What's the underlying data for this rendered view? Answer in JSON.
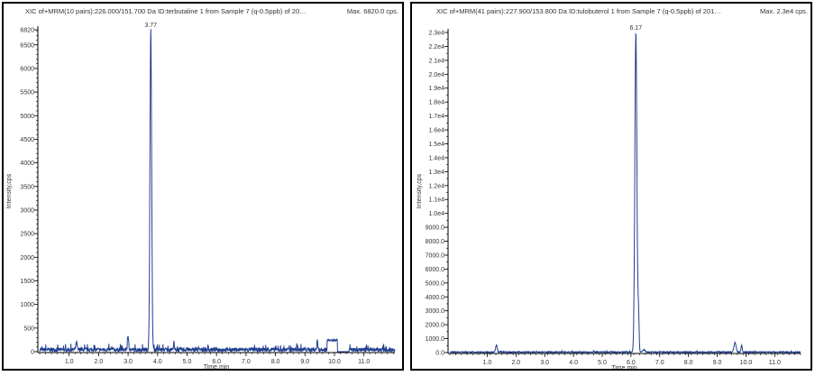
{
  "chart_data": [
    {
      "type": "line",
      "title": "XIC of+MRM(10 pairs):226.000/151.700 Da ID:terbutaline 1 from Sample 7 (q-0.5ppb) of 20…",
      "max_label": "Max. 6820.0 cps.",
      "xlabel": "Time,min",
      "ylabel": "Intensity,cps",
      "xlim": [
        0,
        12.05
      ],
      "ylim": [
        0,
        6820
      ],
      "xticks": [
        "1.0",
        "2.0",
        "3.0",
        "4.0",
        "5.0",
        "6.0",
        "7.0",
        "8.0",
        "9.0",
        "10.0",
        "11.0"
      ],
      "xtick_values": [
        1,
        2,
        3,
        4,
        5,
        6,
        7,
        8,
        9,
        10,
        11
      ],
      "yticks": [
        "0",
        "500",
        "1000",
        "1500",
        "2000",
        "2500",
        "3000",
        "3500",
        "4000",
        "4500",
        "5000",
        "5500",
        "6000",
        "6500",
        "6820"
      ],
      "ytick_values": [
        0,
        500,
        1000,
        1500,
        2000,
        2500,
        3000,
        3500,
        4000,
        4500,
        5000,
        5500,
        6000,
        6500,
        6820
      ],
      "peak_label": "3.77",
      "baseline_noise_max": 120,
      "peaks": [
        {
          "rt": 1.25,
          "height": 150,
          "width": 0.03
        },
        {
          "rt": 3.0,
          "height": 260,
          "width": 0.03
        },
        {
          "rt": 3.77,
          "height": 6820,
          "width": 0.04
        },
        {
          "rt": 4.55,
          "height": 150,
          "width": 0.02
        },
        {
          "rt": 9.42,
          "height": 230,
          "width": 0.02
        }
      ],
      "plateaus": [
        {
          "from": 9.75,
          "to": 10.1,
          "level": 240
        }
      ],
      "gap": [
        10.1,
        10.5
      ],
      "line_color": "#1f3f8f"
    },
    {
      "type": "line",
      "title": "XIC of+MRM(41 pairs):227.900/153.800 Da ID:tulobuterol 1 from Sample 7 (q-0.5ppb) of 201…",
      "max_label": "Max. 2.3e4 cps.",
      "xlabel": "Time,min",
      "ylabel": "Intensity,cps",
      "xlim": [
        -0.3,
        11.9
      ],
      "ylim": [
        0,
        23000
      ],
      "xticks": [
        "1.0",
        "2.0",
        "3.0",
        "4.0",
        "5.0",
        "6.0",
        "7.0",
        "8.0",
        "9.0",
        "10.0",
        "11.0"
      ],
      "xtick_values": [
        1,
        2,
        3,
        4,
        5,
        6,
        7,
        8,
        9,
        10,
        11
      ],
      "yticks": [
        "0.0",
        "1000.0",
        "2000.0",
        "3000.0",
        "4000.0",
        "5000.0",
        "6000.0",
        "7000.0",
        "8000.0",
        "9000.0",
        "1.0e4",
        "1.1e4",
        "1.2e4",
        "1.3e4",
        "1.4e4",
        "1.5e4",
        "1.6e4",
        "1.7e4",
        "1.8e4",
        "1.9e4",
        "2.0e4",
        "2.1e4",
        "2.2e4",
        "2.3e4"
      ],
      "ytick_values": [
        0,
        1000,
        2000,
        3000,
        4000,
        5000,
        6000,
        7000,
        8000,
        9000,
        10000,
        11000,
        12000,
        13000,
        14000,
        15000,
        16000,
        17000,
        18000,
        19000,
        20000,
        21000,
        22000,
        23000
      ],
      "peak_label": "6.17",
      "baseline_noise_max": 90,
      "peaks": [
        {
          "rt": 1.32,
          "height": 500,
          "width": 0.04
        },
        {
          "rt": 6.17,
          "height": 23000,
          "width": 0.05
        },
        {
          "rt": 6.26,
          "height": 2800,
          "width": 0.03
        },
        {
          "rt": 6.45,
          "height": 150,
          "width": 0.06
        },
        {
          "rt": 9.62,
          "height": 700,
          "width": 0.05
        },
        {
          "rt": 9.85,
          "height": 500,
          "width": 0.03
        }
      ],
      "plateaus": [],
      "gap": null,
      "line_color": "#1f3f8f"
    }
  ]
}
